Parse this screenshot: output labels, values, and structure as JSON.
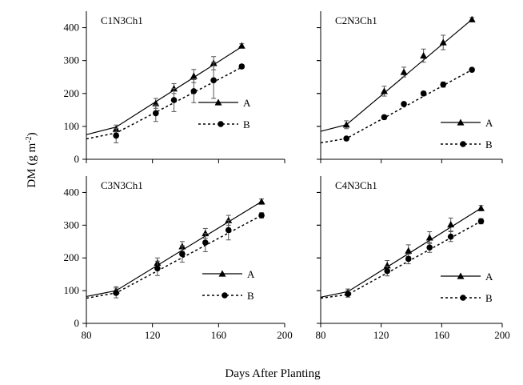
{
  "axis_titles": {
    "ylabel_main": "DM (g m",
    "ylabel_sup": "-2",
    "ylabel_close": ")",
    "xlabel": "Days After Planting"
  },
  "chart_data": [
    {
      "type": "line",
      "title": "C1N3Ch1",
      "ylim": [
        0,
        450
      ],
      "yticks": [
        0,
        100,
        200,
        300,
        400
      ],
      "xlim": [
        80,
        200
      ],
      "xticks": [
        80,
        120,
        160,
        200
      ],
      "xtick_labels": [
        "",
        "",
        "",
        ""
      ],
      "series": [
        {
          "name": "A",
          "fit": [
            [
              80,
              75
            ],
            [
              98,
              98
            ],
            [
              175,
              345
            ]
          ],
          "points": [
            {
              "x": 98,
              "y": 92,
              "err": 12
            },
            {
              "x": 122,
              "y": 170,
              "err": 15
            },
            {
              "x": 133,
              "y": 215,
              "err": 15
            },
            {
              "x": 145,
              "y": 253,
              "err": 20
            },
            {
              "x": 157,
              "y": 292,
              "err": 20
            },
            {
              "x": 174,
              "y": 345,
              "err": 6
            }
          ]
        },
        {
          "name": "B",
          "fit": [
            [
              80,
              62
            ],
            [
              98,
              80
            ],
            [
              175,
              282
            ]
          ],
          "points": [
            {
              "x": 98,
              "y": 72,
              "err": 22
            },
            {
              "x": 122,
              "y": 140,
              "err": 25
            },
            {
              "x": 133,
              "y": 180,
              "err": 35
            },
            {
              "x": 145,
              "y": 207,
              "err": 35
            },
            {
              "x": 157,
              "y": 240,
              "err": 55
            },
            {
              "x": 174,
              "y": 282,
              "err": 6
            }
          ]
        }
      ]
    },
    {
      "type": "line",
      "title": "C2N3Ch1",
      "ylim": [
        0,
        450
      ],
      "yticks": [
        0,
        100,
        200,
        300,
        400
      ],
      "xlim": [
        80,
        200
      ],
      "xticks": [
        80,
        120,
        160,
        200
      ],
      "xtick_labels": [
        "",
        "",
        "",
        ""
      ],
      "series": [
        {
          "name": "A",
          "fit": [
            [
              80,
              85
            ],
            [
              97,
              105
            ],
            [
              180,
              425
            ]
          ],
          "points": [
            {
              "x": 97,
              "y": 105,
              "err": 12
            },
            {
              "x": 122,
              "y": 207,
              "err": 15
            },
            {
              "x": 135,
              "y": 265,
              "err": 15
            },
            {
              "x": 148,
              "y": 315,
              "err": 20
            },
            {
              "x": 161,
              "y": 355,
              "err": 22
            },
            {
              "x": 180,
              "y": 425,
              "err": 6
            }
          ]
        },
        {
          "name": "B",
          "fit": [
            [
              80,
              50
            ],
            [
              97,
              63
            ],
            [
              180,
              272
            ]
          ],
          "points": [
            {
              "x": 97,
              "y": 63,
              "err": 5
            },
            {
              "x": 122,
              "y": 128,
              "err": 6
            },
            {
              "x": 135,
              "y": 168,
              "err": 6
            },
            {
              "x": 148,
              "y": 200,
              "err": 6
            },
            {
              "x": 161,
              "y": 227,
              "err": 8
            },
            {
              "x": 180,
              "y": 272,
              "err": 5
            }
          ]
        }
      ]
    },
    {
      "type": "line",
      "title": "C3N3Ch1",
      "ylim": [
        0,
        450
      ],
      "yticks": [
        0,
        100,
        200,
        300,
        400
      ],
      "xlim": [
        80,
        200
      ],
      "xticks": [
        80,
        120,
        160,
        200
      ],
      "xtick_labels": [
        "80",
        "120",
        "160",
        "200"
      ],
      "series": [
        {
          "name": "A",
          "fit": [
            [
              80,
              82
            ],
            [
              98,
              100
            ],
            [
              186,
              372
            ]
          ],
          "points": [
            {
              "x": 98,
              "y": 100,
              "err": 12
            },
            {
              "x": 123,
              "y": 185,
              "err": 15
            },
            {
              "x": 138,
              "y": 235,
              "err": 15
            },
            {
              "x": 152,
              "y": 275,
              "err": 15
            },
            {
              "x": 166,
              "y": 315,
              "err": 15
            },
            {
              "x": 186,
              "y": 372,
              "err": 8
            }
          ]
        },
        {
          "name": "B",
          "fit": [
            [
              80,
              77
            ],
            [
              98,
              93
            ],
            [
              186,
              330
            ]
          ],
          "points": [
            {
              "x": 98,
              "y": 93,
              "err": 15
            },
            {
              "x": 123,
              "y": 168,
              "err": 22
            },
            {
              "x": 138,
              "y": 212,
              "err": 25
            },
            {
              "x": 152,
              "y": 247,
              "err": 28
            },
            {
              "x": 166,
              "y": 285,
              "err": 30
            },
            {
              "x": 186,
              "y": 330,
              "err": 8
            }
          ]
        }
      ]
    },
    {
      "type": "line",
      "title": "C4N3Ch1",
      "ylim": [
        0,
        450
      ],
      "yticks": [
        0,
        100,
        200,
        300,
        400
      ],
      "xlim": [
        80,
        200
      ],
      "xticks": [
        80,
        120,
        160,
        200
      ],
      "xtick_labels": [
        "80",
        "120",
        "160",
        "200"
      ],
      "series": [
        {
          "name": "A",
          "fit": [
            [
              80,
              80
            ],
            [
              98,
              97
            ],
            [
              186,
              352
            ]
          ],
          "points": [
            {
              "x": 98,
              "y": 95,
              "err": 10
            },
            {
              "x": 124,
              "y": 177,
              "err": 15
            },
            {
              "x": 138,
              "y": 222,
              "err": 18
            },
            {
              "x": 152,
              "y": 262,
              "err": 18
            },
            {
              "x": 166,
              "y": 302,
              "err": 20
            },
            {
              "x": 186,
              "y": 352,
              "err": 8
            }
          ]
        },
        {
          "name": "B",
          "fit": [
            [
              80,
              77
            ],
            [
              98,
              88
            ],
            [
              186,
              312
            ]
          ],
          "points": [
            {
              "x": 98,
              "y": 90,
              "err": 10
            },
            {
              "x": 124,
              "y": 160,
              "err": 15
            },
            {
              "x": 138,
              "y": 197,
              "err": 15
            },
            {
              "x": 152,
              "y": 232,
              "err": 15
            },
            {
              "x": 166,
              "y": 265,
              "err": 15
            },
            {
              "x": 186,
              "y": 312,
              "err": 8
            }
          ]
        }
      ]
    }
  ]
}
